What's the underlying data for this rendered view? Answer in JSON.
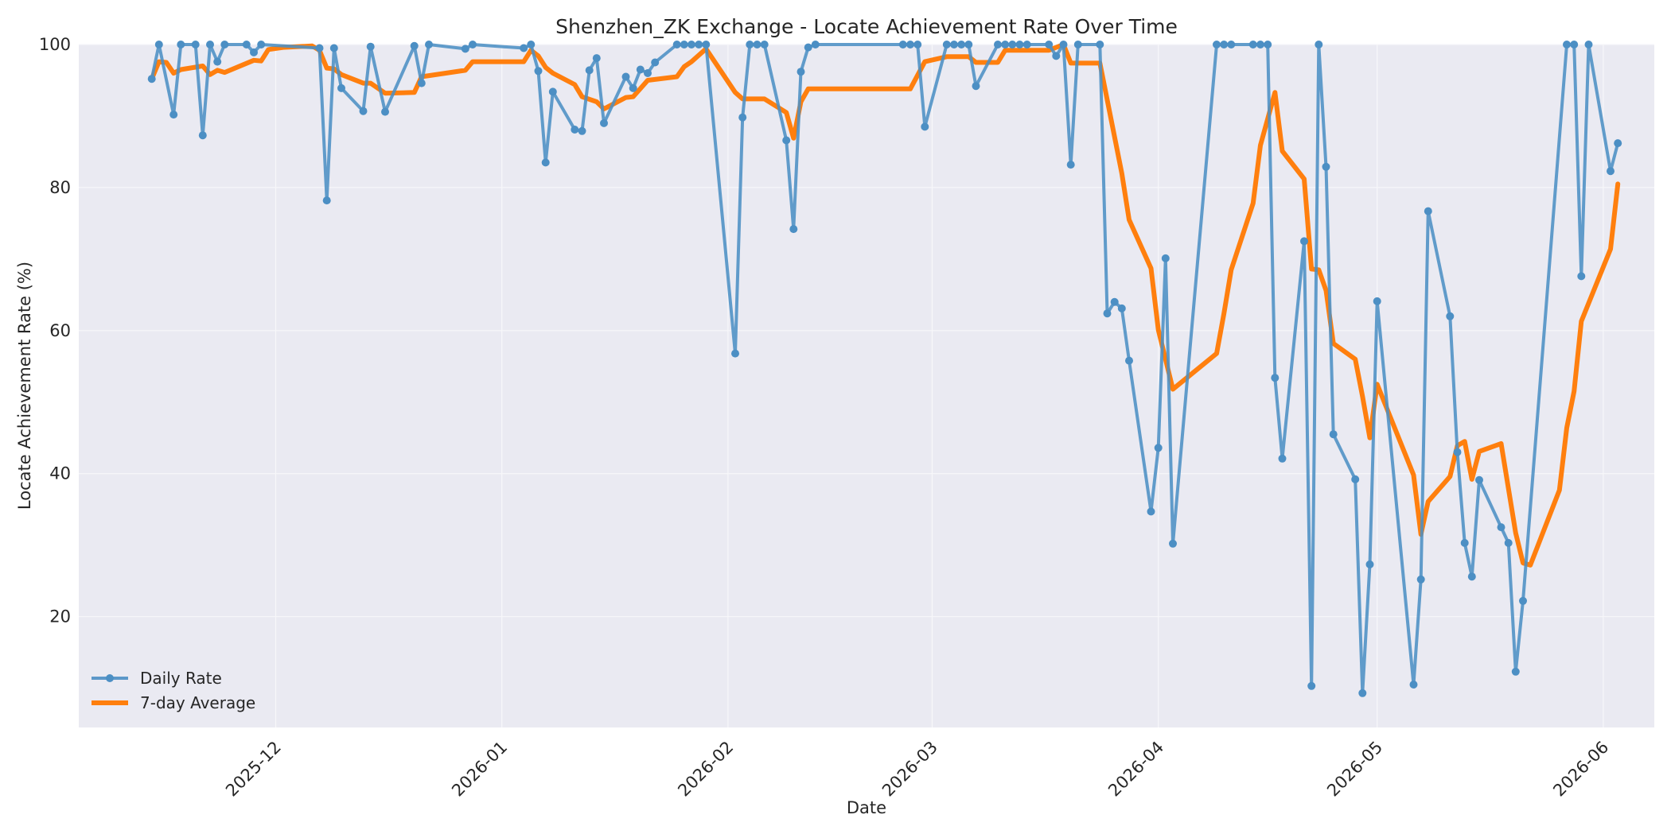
{
  "chart_data": {
    "type": "line",
    "title": "Shenzhen_ZK Exchange - Locate Achievement Rate Over Time",
    "xlabel": "Date",
    "ylabel": "Locate Achievement Rate (%)",
    "xlim": [
      "2025-11-04",
      "2026-06-08"
    ],
    "ylim": [
      4.5,
      100
    ],
    "grid": true,
    "legend_position": "lower-left",
    "x_ticks": [
      "2025-12-01",
      "2026-01-01",
      "2026-02-01",
      "2026-03-01",
      "2026-04-01",
      "2026-05-01",
      "2026-06-01"
    ],
    "x_tick_labels": [
      "2025-12",
      "2026-01",
      "2026-02",
      "2026-03",
      "2026-04",
      "2026-05",
      "2026-06"
    ],
    "y_ticks": [
      20,
      40,
      60,
      80,
      100
    ],
    "colors": {
      "daily": "#4c8fc4",
      "average": "#ff7f0e",
      "plot_bg": "#eaeaf2",
      "grid": "#f7f7fa"
    },
    "series": [
      {
        "name": "Daily Rate",
        "points": [
          [
            "2025-11-14",
            95.2
          ],
          [
            "2025-11-15",
            100
          ],
          [
            "2025-11-17",
            90.2
          ],
          [
            "2025-11-18",
            100
          ],
          [
            "2025-11-20",
            100
          ],
          [
            "2025-11-21",
            87.3
          ],
          [
            "2025-11-22",
            100
          ],
          [
            "2025-11-23",
            97.6
          ],
          [
            "2025-11-24",
            100
          ],
          [
            "2025-11-27",
            100
          ],
          [
            "2025-11-28",
            98.9
          ],
          [
            "2025-11-29",
            100
          ],
          [
            "2025-12-07",
            99.5
          ],
          [
            "2025-12-08",
            78.2
          ],
          [
            "2025-12-09",
            99.5
          ],
          [
            "2025-12-10",
            93.9
          ],
          [
            "2025-12-13",
            90.7
          ],
          [
            "2025-12-14",
            99.7
          ],
          [
            "2025-12-16",
            90.6
          ],
          [
            "2025-12-20",
            99.8
          ],
          [
            "2025-12-21",
            94.6
          ],
          [
            "2025-12-22",
            100
          ],
          [
            "2025-12-27",
            99.4
          ],
          [
            "2025-12-28",
            100
          ],
          [
            "2026-01-04",
            99.5
          ],
          [
            "2026-01-05",
            100
          ],
          [
            "2026-01-06",
            96.3
          ],
          [
            "2026-01-07",
            83.5
          ],
          [
            "2026-01-08",
            93.4
          ],
          [
            "2026-01-11",
            88.1
          ],
          [
            "2026-01-12",
            87.9
          ],
          [
            "2026-01-13",
            96.4
          ],
          [
            "2026-01-14",
            98.1
          ],
          [
            "2026-01-15",
            89.0
          ],
          [
            "2026-01-18",
            95.5
          ],
          [
            "2026-01-19",
            93.9
          ],
          [
            "2026-01-20",
            96.5
          ],
          [
            "2026-01-21",
            96.0
          ],
          [
            "2026-01-22",
            97.5
          ],
          [
            "2026-01-25",
            100
          ],
          [
            "2026-01-26",
            100
          ],
          [
            "2026-01-27",
            100
          ],
          [
            "2026-01-28",
            100
          ],
          [
            "2026-01-29",
            100
          ],
          [
            "2026-02-02",
            56.8
          ],
          [
            "2026-02-03",
            89.8
          ],
          [
            "2026-02-04",
            100
          ],
          [
            "2026-02-05",
            100
          ],
          [
            "2026-02-06",
            100
          ],
          [
            "2026-02-09",
            86.6
          ],
          [
            "2026-02-10",
            74.2
          ],
          [
            "2026-02-11",
            96.2
          ],
          [
            "2026-02-12",
            99.6
          ],
          [
            "2026-02-13",
            100
          ],
          [
            "2026-02-25",
            100
          ],
          [
            "2026-02-26",
            100
          ],
          [
            "2026-02-27",
            100
          ],
          [
            "2026-02-28",
            88.5
          ],
          [
            "2026-03-03",
            100
          ],
          [
            "2026-03-04",
            100
          ],
          [
            "2026-03-05",
            100
          ],
          [
            "2026-03-06",
            100
          ],
          [
            "2026-03-07",
            94.2
          ],
          [
            "2026-03-10",
            100
          ],
          [
            "2026-03-11",
            100
          ],
          [
            "2026-03-12",
            100
          ],
          [
            "2026-03-13",
            100
          ],
          [
            "2026-03-14",
            100
          ],
          [
            "2026-03-17",
            100
          ],
          [
            "2026-03-18",
            98.4
          ],
          [
            "2026-03-19",
            100
          ],
          [
            "2026-03-20",
            83.2
          ],
          [
            "2026-03-21",
            100
          ],
          [
            "2026-03-24",
            100
          ],
          [
            "2026-03-25",
            62.4
          ],
          [
            "2026-03-26",
            64.0
          ],
          [
            "2026-03-27",
            63.1
          ],
          [
            "2026-03-28",
            55.8
          ],
          [
            "2026-03-31",
            34.7
          ],
          [
            "2026-04-01",
            43.6
          ],
          [
            "2026-04-02",
            70.1
          ],
          [
            "2026-04-03",
            30.2
          ],
          [
            "2026-04-09",
            100
          ],
          [
            "2026-04-10",
            100
          ],
          [
            "2026-04-11",
            100
          ],
          [
            "2026-04-14",
            100
          ],
          [
            "2026-04-15",
            100
          ],
          [
            "2026-04-16",
            100
          ],
          [
            "2026-04-17",
            53.4
          ],
          [
            "2026-04-18",
            42.1
          ],
          [
            "2026-04-21",
            72.5
          ],
          [
            "2026-04-22",
            10.3
          ],
          [
            "2026-04-23",
            100
          ],
          [
            "2026-04-24",
            82.9
          ],
          [
            "2026-04-25",
            45.5
          ],
          [
            "2026-04-28",
            39.2
          ],
          [
            "2026-04-29",
            9.3
          ],
          [
            "2026-04-30",
            27.3
          ],
          [
            "2026-05-01",
            64.1
          ],
          [
            "2026-05-06",
            10.5
          ],
          [
            "2026-05-07",
            25.2
          ],
          [
            "2026-05-08",
            76.7
          ],
          [
            "2026-05-11",
            62.0
          ],
          [
            "2026-05-12",
            43.0
          ],
          [
            "2026-05-13",
            30.3
          ],
          [
            "2026-05-14",
            25.6
          ],
          [
            "2026-05-15",
            39.1
          ],
          [
            "2026-05-18",
            32.5
          ],
          [
            "2026-05-19",
            30.3
          ],
          [
            "2026-05-20",
            12.3
          ],
          [
            "2026-05-21",
            22.2
          ],
          [
            "2026-05-27",
            100
          ],
          [
            "2026-05-28",
            100
          ],
          [
            "2026-05-29",
            67.6
          ],
          [
            "2026-05-30",
            100
          ],
          [
            "2026-06-02",
            82.3
          ],
          [
            "2026-06-03",
            86.2
          ]
        ]
      },
      {
        "name": "7-day Average",
        "points": [
          [
            "2025-11-14",
            95.2
          ],
          [
            "2025-11-15",
            97.6
          ],
          [
            "2025-11-16",
            97.5
          ],
          [
            "2025-11-17",
            96.0
          ],
          [
            "2025-11-18",
            96.5
          ],
          [
            "2025-11-21",
            97.0
          ],
          [
            "2025-11-22",
            95.8
          ],
          [
            "2025-11-23",
            96.4
          ],
          [
            "2025-11-24",
            96.1
          ],
          [
            "2025-11-28",
            97.8
          ],
          [
            "2025-11-29",
            97.7
          ],
          [
            "2025-11-30",
            99.3
          ],
          [
            "2025-12-02",
            99.6
          ],
          [
            "2025-12-06",
            99.8
          ],
          [
            "2025-12-07",
            99.2
          ],
          [
            "2025-12-08",
            96.7
          ],
          [
            "2025-12-09",
            96.6
          ],
          [
            "2025-12-10",
            95.8
          ],
          [
            "2025-12-13",
            94.6
          ],
          [
            "2025-12-14",
            94.6
          ],
          [
            "2025-12-16",
            93.2
          ],
          [
            "2025-12-20",
            93.3
          ],
          [
            "2025-12-21",
            95.5
          ],
          [
            "2025-12-27",
            96.4
          ],
          [
            "2025-12-28",
            97.6
          ],
          [
            "2026-01-04",
            97.6
          ],
          [
            "2026-01-05",
            99.2
          ],
          [
            "2026-01-06",
            98.4
          ],
          [
            "2026-01-07",
            96.8
          ],
          [
            "2026-01-08",
            96.0
          ],
          [
            "2026-01-11",
            94.4
          ],
          [
            "2026-01-12",
            92.7
          ],
          [
            "2026-01-14",
            92.0
          ],
          [
            "2026-01-15",
            91.0
          ],
          [
            "2026-01-18",
            92.6
          ],
          [
            "2026-01-19",
            92.7
          ],
          [
            "2026-01-21",
            95.0
          ],
          [
            "2026-01-25",
            95.5
          ],
          [
            "2026-01-26",
            96.9
          ],
          [
            "2026-01-27",
            97.6
          ],
          [
            "2026-01-29",
            99.4
          ],
          [
            "2026-02-02",
            93.3
          ],
          [
            "2026-02-03",
            92.4
          ],
          [
            "2026-02-06",
            92.4
          ],
          [
            "2026-02-09",
            90.5
          ],
          [
            "2026-02-10",
            86.9
          ],
          [
            "2026-02-11",
            92.0
          ],
          [
            "2026-02-12",
            93.8
          ],
          [
            "2026-02-26",
            93.8
          ],
          [
            "2026-02-28",
            97.6
          ],
          [
            "2026-03-03",
            98.3
          ],
          [
            "2026-03-06",
            98.3
          ],
          [
            "2026-03-07",
            97.5
          ],
          [
            "2026-03-10",
            97.5
          ],
          [
            "2026-03-11",
            99.2
          ],
          [
            "2026-03-17",
            99.2
          ],
          [
            "2026-03-19",
            100
          ],
          [
            "2026-03-20",
            97.4
          ],
          [
            "2026-03-24",
            97.4
          ],
          [
            "2026-03-27",
            82.0
          ],
          [
            "2026-03-28",
            75.5
          ],
          [
            "2026-03-31",
            68.7
          ],
          [
            "2026-04-01",
            60.1
          ],
          [
            "2026-04-03",
            51.8
          ],
          [
            "2026-04-09",
            56.8
          ],
          [
            "2026-04-10",
            62.4
          ],
          [
            "2026-04-11",
            68.5
          ],
          [
            "2026-04-14",
            77.8
          ],
          [
            "2026-04-15",
            85.9
          ],
          [
            "2026-04-17",
            93.3
          ],
          [
            "2026-04-18",
            85.1
          ],
          [
            "2026-04-21",
            81.2
          ],
          [
            "2026-04-22",
            68.6
          ],
          [
            "2026-04-23",
            68.5
          ],
          [
            "2026-04-24",
            65.6
          ],
          [
            "2026-04-25",
            58.2
          ],
          [
            "2026-04-28",
            56.0
          ],
          [
            "2026-04-29",
            50.8
          ],
          [
            "2026-04-30",
            45.0
          ],
          [
            "2026-05-01",
            52.5
          ],
          [
            "2026-05-06",
            39.8
          ],
          [
            "2026-05-07",
            31.5
          ],
          [
            "2026-05-08",
            36.1
          ],
          [
            "2026-05-11",
            39.6
          ],
          [
            "2026-05-12",
            43.9
          ],
          [
            "2026-05-13",
            44.5
          ],
          [
            "2026-05-14",
            39.2
          ],
          [
            "2026-05-15",
            43.1
          ],
          [
            "2026-05-18",
            44.2
          ],
          [
            "2026-05-20",
            31.7
          ],
          [
            "2026-05-21",
            27.5
          ],
          [
            "2026-05-22",
            27.2
          ],
          [
            "2026-05-26",
            37.7
          ],
          [
            "2026-05-27",
            46.4
          ],
          [
            "2026-05-28",
            51.5
          ],
          [
            "2026-05-29",
            61.3
          ],
          [
            "2026-06-02",
            71.4
          ],
          [
            "2026-06-03",
            80.5
          ]
        ]
      }
    ]
  }
}
